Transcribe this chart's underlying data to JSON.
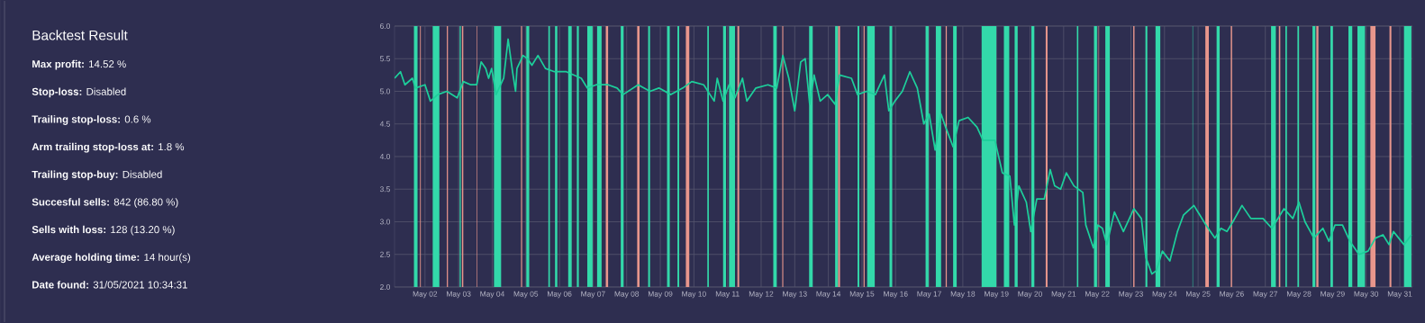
{
  "chart_data": [
    {
      "type": "other",
      "title": "Backtest Result",
      "annotations": [
        "**Max profit:** 14.52 %",
        "**Stop-loss:** Disabled",
        "**Trailing stop-loss:** 0.6 %",
        "**Arm trailing stop-loss at:** 1.8 %",
        "**Trailing stop-buy:** Disabled",
        "**Succesful sells:** 842 (86.80 %)",
        "**Sells with loss:** 128 (13.20 %)",
        "**Average holding time:** 14 hour(s)",
        "**Date found:** 31/05/2021 10:34:31"
      ]
    },
    {
      "type": "line",
      "grid": true,
      "xlim": [
        "2021-05-01T02:15",
        "2021-05-31T09:00"
      ],
      "ylim": [
        2,
        6
      ],
      "yticks": [
        {
          "value": 2,
          "label": "2.0"
        },
        {
          "value": 2.5,
          "label": "2.5"
        },
        {
          "value": 3,
          "label": "3.0"
        },
        {
          "value": 3.5,
          "label": "3.5"
        },
        {
          "value": 4,
          "label": "4.0"
        },
        {
          "value": 4.5,
          "label": "4.5"
        },
        {
          "value": 5,
          "label": "5.0"
        },
        {
          "value": 5.5,
          "label": "5.5"
        },
        {
          "value": 6,
          "label": "6.0"
        }
      ],
      "xticks": [
        {
          "value": "2021-05-02",
          "label": "May 02"
        },
        {
          "value": "2021-05-03",
          "label": "May 03"
        },
        {
          "value": "2021-05-04",
          "label": "May 04"
        },
        {
          "value": "2021-05-05",
          "label": "May 05"
        },
        {
          "value": "2021-05-06",
          "label": "May 06"
        },
        {
          "value": "2021-05-07",
          "label": "May 07"
        },
        {
          "value": "2021-05-08",
          "label": "May 08"
        },
        {
          "value": "2021-05-09",
          "label": "May 09"
        },
        {
          "value": "2021-05-10",
          "label": "May 10"
        },
        {
          "value": "2021-05-11",
          "label": "May 11"
        },
        {
          "value": "2021-05-12",
          "label": "May 12"
        },
        {
          "value": "2021-05-13",
          "label": "May 13"
        },
        {
          "value": "2021-05-14",
          "label": "May 14"
        },
        {
          "value": "2021-05-15",
          "label": "May 15"
        },
        {
          "value": "2021-05-16",
          "label": "May 16"
        },
        {
          "value": "2021-05-17",
          "label": "May 17"
        },
        {
          "value": "2021-05-18",
          "label": "May 18"
        },
        {
          "value": "2021-05-19",
          "label": "May 19"
        },
        {
          "value": "2021-05-20",
          "label": "May 20"
        },
        {
          "value": "2021-05-21",
          "label": "May 21"
        },
        {
          "value": "2021-05-22",
          "label": "May 22"
        },
        {
          "value": "2021-05-23",
          "label": "May 23"
        },
        {
          "value": "2021-05-24",
          "label": "May 24"
        },
        {
          "value": "2021-05-25",
          "label": "May 25"
        },
        {
          "value": "2021-05-26",
          "label": "May 26"
        },
        {
          "value": "2021-05-27",
          "label": "May 27"
        },
        {
          "value": "2021-05-28",
          "label": "May 28"
        },
        {
          "value": "2021-05-29",
          "label": "May 29"
        },
        {
          "value": "2021-05-30",
          "label": "May 30"
        },
        {
          "value": "2021-05-31",
          "label": "May 31"
        }
      ],
      "series": [
        {
          "color": "#1dcf9b",
          "x": [
            "2021-05-01T02:15",
            "2021-05-01T06:30",
            "2021-05-01T09:40",
            "2021-05-01T15:00",
            "2021-05-01T17:10",
            "2021-05-02T00:00",
            "2021-05-02T03:50",
            "2021-05-02T09:10",
            "2021-05-02T15:35",
            "2021-05-02T23:00",
            "2021-05-03T03:20",
            "2021-05-03T08:40",
            "2021-05-03T12:55",
            "2021-05-03T16:05",
            "2021-05-03T19:20",
            "2021-05-03T21:25",
            "2021-05-03T23:35",
            "2021-05-04T02:45",
            "2021-05-04T08:10",
            "2021-05-04T11:20",
            "2021-05-04T14:30",
            "2021-05-04T16:40",
            "2021-05-04T17:40",
            "2021-05-04T22:00",
            "2021-05-05T01:10",
            "2021-05-05T04:20",
            "2021-05-05T08:40",
            "2021-05-05T14:00",
            "2021-05-05T20:25",
            "2021-05-06T04:55",
            "2021-05-06T15:35",
            "2021-05-06T19:50",
            "2021-05-07T02:15",
            "2021-05-07T10:45",
            "2021-05-07T17:10",
            "2021-05-07T21:25",
            "2021-05-08T08:10",
            "2021-05-08T16:40",
            "2021-05-08T23:00",
            "2021-05-09T07:35",
            "2021-05-09T16:05",
            "2021-05-09T22:30",
            "2021-05-10T07:00",
            "2021-05-10T14:30",
            "2021-05-10T16:40",
            "2021-05-10T20:50",
            "2021-05-11T01:05",
            "2021-05-11T05:20",
            "2021-05-11T10:40",
            "2021-05-11T13:50",
            "2021-05-11T20:15",
            "2021-05-12T04:50",
            "2021-05-12T11:10",
            "2021-05-12T15:30",
            "2021-05-12T19:45",
            "2021-05-13T00:00",
            "2021-05-13T04:15",
            "2021-05-13T07:30",
            "2021-05-13T10:40",
            "2021-05-13T13:50",
            "2021-05-13T18:10",
            "2021-05-13T23:30",
            "2021-05-14T04:50",
            "2021-05-14T08:00",
            "2021-05-14T16:30",
            "2021-05-14T20:50",
            "2021-05-15T03:10",
            "2021-05-15T09:35",
            "2021-05-15T16:00",
            "2021-05-15T19:10",
            "2021-05-15T23:30",
            "2021-05-16T04:50",
            "2021-05-16T10:10",
            "2021-05-16T15:30",
            "2021-05-16T20:10",
            "2021-05-17T00:00",
            "2021-05-17T04:15",
            "2021-05-17T08:30",
            "2021-05-17T11:45",
            "2021-05-17T17:05",
            "2021-05-17T21:20",
            "2021-05-18T03:45",
            "2021-05-18T10:10",
            "2021-05-18T14:25",
            "2021-05-18T22:55",
            "2021-05-19T04:15",
            "2021-05-19T09:35",
            "2021-05-19T12:50",
            "2021-05-19T16:00",
            "2021-05-19T21:20",
            "2021-05-20T00:30",
            "2021-05-20T04:50",
            "2021-05-20T10:10",
            "2021-05-20T14:25",
            "2021-05-20T17:35",
            "2021-05-20T21:50",
            "2021-05-21T01:55",
            "2021-05-21T07:20",
            "2021-05-21T13:40",
            "2021-05-21T15:50",
            "2021-05-21T21:15",
            "2021-05-22T00:25",
            "2021-05-22T03:40",
            "2021-05-22T06:50",
            "2021-05-22T12:15",
            "2021-05-22T18:40",
            "2021-05-23T02:10",
            "2021-05-23T07:30",
            "2021-05-23T10:45",
            "2021-05-23T15:00",
            "2021-05-23T18:10",
            "2021-05-23T22:30",
            "2021-05-24T03:50",
            "2021-05-24T09:15",
            "2021-05-24T13:30",
            "2021-05-24T21:00",
            "2021-05-25T01:20",
            "2021-05-25T05:35",
            "2021-05-25T12:00",
            "2021-05-25T16:20",
            "2021-05-25T20:35",
            "2021-05-26T00:50",
            "2021-05-26T07:20",
            "2021-05-26T13:40",
            "2021-05-26T22:20",
            "2021-05-27T04:40",
            "2021-05-27T13:20",
            "2021-05-27T19:40",
            "2021-05-28T00:00",
            "2021-05-28T04:20",
            "2021-05-28T10:40",
            "2021-05-28T17:05",
            "2021-05-28T21:25",
            "2021-05-29T01:45",
            "2021-05-29T07:05",
            "2021-05-29T12:25",
            "2021-05-29T18:50",
            "2021-05-30T01:20",
            "2021-05-30T06:40",
            "2021-05-30T12:00",
            "2021-05-30T16:20",
            "2021-05-30T19:30",
            "2021-05-31T03:00",
            "2021-05-31T08:20"
          ],
          "values": [
            5.2,
            5.3,
            5.1,
            5.2,
            5.05,
            5.1,
            4.85,
            4.95,
            5.0,
            4.9,
            5.15,
            5.1,
            5.1,
            5.45,
            5.35,
            5.2,
            5.35,
            4.95,
            5.2,
            5.8,
            5.3,
            5.0,
            5.35,
            5.55,
            5.5,
            5.4,
            5.55,
            5.35,
            5.3,
            5.3,
            5.2,
            5.05,
            5.1,
            5.1,
            5.05,
            4.95,
            5.1,
            5.0,
            5.05,
            4.95,
            5.05,
            5.15,
            5.1,
            4.85,
            5.2,
            4.85,
            5.1,
            4.9,
            5.2,
            4.85,
            5.05,
            5.1,
            5.05,
            5.55,
            5.2,
            4.7,
            5.45,
            5.5,
            4.8,
            5.25,
            4.85,
            4.95,
            4.8,
            5.25,
            5.2,
            4.95,
            5.0,
            4.95,
            5.25,
            4.7,
            4.85,
            5.0,
            5.3,
            5.05,
            4.5,
            4.65,
            4.1,
            4.65,
            4.45,
            4.15,
            4.55,
            4.6,
            4.45,
            4.25,
            4.25,
            3.75,
            3.7,
            2.95,
            3.55,
            3.3,
            2.85,
            3.35,
            3.35,
            3.8,
            3.55,
            3.5,
            3.75,
            3.55,
            3.45,
            2.95,
            2.6,
            2.95,
            2.9,
            2.65,
            3.15,
            2.85,
            3.2,
            3.05,
            2.45,
            2.2,
            2.25,
            2.55,
            2.4,
            2.85,
            3.1,
            3.25,
            3.1,
            2.95,
            2.75,
            2.9,
            2.85,
            3.0,
            3.25,
            3.05,
            3.05,
            2.9,
            3.2,
            3.05,
            3.3,
            3.0,
            2.75,
            2.9,
            2.7,
            2.95,
            2.95,
            2.7,
            2.5,
            2.55,
            2.75,
            2.8,
            2.65,
            2.85,
            2.65,
            2.8
          ]
        }
      ],
      "bands": [
        {
          "axis": "x",
          "from": "2021-05-01T16:05",
          "to": "2021-05-01T18:40",
          "color": "#33d9aa"
        },
        {
          "axis": "x",
          "from": "2021-05-01T20:25",
          "to": "2021-05-01T21:00",
          "color": "#e8968c"
        },
        {
          "axis": "x",
          "from": "2021-05-02T05:30",
          "to": "2021-05-02T10:15",
          "color": "#33d9aa"
        },
        {
          "axis": "x",
          "from": "2021-05-02T15:35",
          "to": "2021-05-02T16:25",
          "color": "#e8968c"
        },
        {
          "axis": "x",
          "from": "2021-05-03T00:45",
          "to": "2021-05-03T01:35",
          "color": "#33d9aa"
        },
        {
          "axis": "x",
          "from": "2021-05-03T02:15",
          "to": "2021-05-03T03:20",
          "color": "#e8968c"
        },
        {
          "axis": "x",
          "from": "2021-05-03T12:55",
          "to": "2021-05-03T13:20",
          "color": "#e8968c"
        },
        {
          "axis": "x",
          "from": "2021-05-04T01:15",
          "to": "2021-05-04T06:25",
          "color": "#33d9aa"
        },
        {
          "axis": "x",
          "from": "2021-05-04T20:30",
          "to": "2021-05-04T21:20",
          "color": "#e8968c"
        },
        {
          "axis": "x",
          "from": "2021-05-05T00:20",
          "to": "2021-05-05T02:25",
          "color": "#33d9aa"
        },
        {
          "axis": "x",
          "from": "2021-05-05T16:05",
          "to": "2021-05-05T17:10",
          "color": "#33d9aa"
        },
        {
          "axis": "x",
          "from": "2021-05-05T20:50",
          "to": "2021-05-05T22:30",
          "color": "#33d9aa"
        },
        {
          "axis": "x",
          "from": "2021-05-06T06:10",
          "to": "2021-05-06T08:45",
          "color": "#33d9aa"
        },
        {
          "axis": "x",
          "from": "2021-05-06T12:25",
          "to": "2021-05-06T13:50",
          "color": "#33d9aa"
        },
        {
          "axis": "x",
          "from": "2021-05-06T19:50",
          "to": "2021-05-06T23:40",
          "color": "#33d9aa"
        },
        {
          "axis": "x",
          "from": "2021-05-07T02:50",
          "to": "2021-05-07T06:05",
          "color": "#33d9aa"
        },
        {
          "axis": "x",
          "from": "2021-05-07T09:05",
          "to": "2021-05-07T10:45",
          "color": "#e8968c"
        },
        {
          "axis": "x",
          "from": "2021-05-07T19:45",
          "to": "2021-05-07T21:50",
          "color": "#33d9aa"
        },
        {
          "axis": "x",
          "from": "2021-05-08T07:30",
          "to": "2021-05-08T09:10",
          "color": "#e8968c"
        },
        {
          "axis": "x",
          "from": "2021-05-08T15:20",
          "to": "2021-05-08T16:40",
          "color": "#33d9aa"
        },
        {
          "axis": "x",
          "from": "2021-05-09T04:50",
          "to": "2021-05-09T06:45",
          "color": "#33d9aa"
        },
        {
          "axis": "x",
          "from": "2021-05-09T12:15",
          "to": "2021-05-09T13:30",
          "color": "#33d9aa"
        },
        {
          "axis": "x",
          "from": "2021-05-09T18:15",
          "to": "2021-05-09T20:50",
          "color": "#e8968c"
        },
        {
          "axis": "x",
          "from": "2021-05-10T09:35",
          "to": "2021-05-10T10:40",
          "color": "#33d9aa"
        },
        {
          "axis": "x",
          "from": "2021-05-10T20:50",
          "to": "2021-05-10T22:55",
          "color": "#33d9aa"
        },
        {
          "axis": "x",
          "from": "2021-05-11T01:05",
          "to": "2021-05-11T05:20",
          "color": "#33d9aa"
        },
        {
          "axis": "x",
          "from": "2021-05-11T07:05",
          "to": "2021-05-11T08:20",
          "color": "#e8968c"
        },
        {
          "axis": "x",
          "from": "2021-05-12T08:40",
          "to": "2021-05-12T11:10",
          "color": "#33d9aa"
        },
        {
          "axis": "x",
          "from": "2021-05-12T15:05",
          "to": "2021-05-12T15:50",
          "color": "#e8968c"
        },
        {
          "axis": "x",
          "from": "2021-05-13T10:15",
          "to": "2021-05-13T12:50",
          "color": "#33d9aa"
        },
        {
          "axis": "x",
          "from": "2021-05-14T04:50",
          "to": "2021-05-14T06:55",
          "color": "#33d9aa"
        },
        {
          "axis": "x",
          "from": "2021-05-14T06:55",
          "to": "2021-05-14T08:25",
          "color": "#e8968c"
        },
        {
          "axis": "x",
          "from": "2021-05-14T20:50",
          "to": "2021-05-14T22:05",
          "color": "#33d9aa"
        },
        {
          "axis": "x",
          "from": "2021-05-15T01:05",
          "to": "2021-05-15T01:55",
          "color": "#e8968c"
        },
        {
          "axis": "x",
          "from": "2021-05-15T03:40",
          "to": "2021-05-15T09:10",
          "color": "#33d9aa"
        },
        {
          "axis": "x",
          "from": "2021-05-15T19:40",
          "to": "2021-05-15T21:35",
          "color": "#33d9aa"
        },
        {
          "axis": "x",
          "from": "2021-05-16T21:25",
          "to": "2021-05-16T23:35",
          "color": "#33d9aa"
        },
        {
          "axis": "x",
          "from": "2021-05-17T04:40",
          "to": "2021-05-17T08:30",
          "color": "#33d9aa"
        },
        {
          "axis": "x",
          "from": "2021-05-17T11:45",
          "to": "2021-05-17T12:35",
          "color": "#e8968c"
        },
        {
          "axis": "x",
          "from": "2021-05-17T17:05",
          "to": "2021-05-17T19:40",
          "color": "#33d9aa"
        },
        {
          "axis": "x",
          "from": "2021-05-18T13:20",
          "to": "2021-05-19T00:00",
          "color": "#33d9aa"
        },
        {
          "axis": "x",
          "from": "2021-05-19T05:20",
          "to": "2021-05-19T09:10",
          "color": "#33d9aa"
        },
        {
          "axis": "x",
          "from": "2021-05-19T13:00",
          "to": "2021-05-19T15:10",
          "color": "#33d9aa"
        },
        {
          "axis": "x",
          "from": "2021-05-20T00:55",
          "to": "2021-05-20T03:05",
          "color": "#33d9aa"
        },
        {
          "axis": "x",
          "from": "2021-05-20T11:10",
          "to": "2021-05-20T12:30",
          "color": "#e8968c"
        },
        {
          "axis": "x",
          "from": "2021-05-21T09:25",
          "to": "2021-05-21T10:30",
          "color": "#33d9aa"
        },
        {
          "axis": "x",
          "from": "2021-05-21T21:40",
          "to": "2021-05-21T23:50",
          "color": "#33d9aa"
        },
        {
          "axis": "x",
          "from": "2021-05-22T00:50",
          "to": "2021-05-22T01:20",
          "color": "#e8968c"
        },
        {
          "axis": "x",
          "from": "2021-05-22T05:45",
          "to": "2021-05-22T09:00",
          "color": "#33d9aa"
        },
        {
          "axis": "x",
          "from": "2021-05-23T01:40",
          "to": "2021-05-23T02:35",
          "color": "#e8968c"
        },
        {
          "axis": "x",
          "from": "2021-05-23T10:15",
          "to": "2021-05-23T11:45",
          "color": "#33d9aa"
        },
        {
          "axis": "x",
          "from": "2021-05-23T17:35",
          "to": "2021-05-23T21:00",
          "color": "#33d9aa"
        },
        {
          "axis": "x",
          "from": "2021-05-24T19:55",
          "to": "2021-05-24T20:20",
          "color": "#33d9aa"
        },
        {
          "axis": "x",
          "from": "2021-05-25T05:10",
          "to": "2021-05-25T07:40",
          "color": "#e8968c"
        },
        {
          "axis": "x",
          "from": "2021-05-25T13:05",
          "to": "2021-05-25T15:25",
          "color": "#33d9aa"
        },
        {
          "axis": "x",
          "from": "2021-05-25T23:20",
          "to": "2021-05-26T00:15",
          "color": "#e8968c"
        },
        {
          "axis": "x",
          "from": "2021-05-27T04:05",
          "to": "2021-05-27T07:30",
          "color": "#33d9aa"
        },
        {
          "axis": "x",
          "from": "2021-05-27T09:40",
          "to": "2021-05-27T10:40",
          "color": "#e8968c"
        },
        {
          "axis": "x",
          "from": "2021-05-27T14:20",
          "to": "2021-05-27T15:25",
          "color": "#33d9aa"
        },
        {
          "axis": "x",
          "from": "2021-05-27T22:55",
          "to": "2021-05-28T00:00",
          "color": "#33d9aa"
        },
        {
          "axis": "x",
          "from": "2021-05-28T09:40",
          "to": "2021-05-28T11:45",
          "color": "#33d9aa"
        },
        {
          "axis": "x",
          "from": "2021-05-28T12:25",
          "to": "2021-05-28T13:55",
          "color": "#e8968c"
        },
        {
          "axis": "x",
          "from": "2021-05-28T22:30",
          "to": "2021-05-29T00:15",
          "color": "#33d9aa"
        },
        {
          "axis": "x",
          "from": "2021-05-29T11:20",
          "to": "2021-05-29T14:10",
          "color": "#33d9aa"
        },
        {
          "axis": "x",
          "from": "2021-05-29T17:45",
          "to": "2021-05-29T23:10",
          "color": "#33d9aa"
        },
        {
          "axis": "x",
          "from": "2021-05-30T03:00",
          "to": "2021-05-30T06:40",
          "color": "#e8968c"
        },
        {
          "axis": "x",
          "from": "2021-05-30T16:40",
          "to": "2021-05-30T18:00",
          "color": "#e8968c"
        },
        {
          "axis": "x",
          "from": "2021-05-31T03:00",
          "to": "2021-05-31T08:20",
          "color": "#33d9aa"
        }
      ]
    }
  ]
}
